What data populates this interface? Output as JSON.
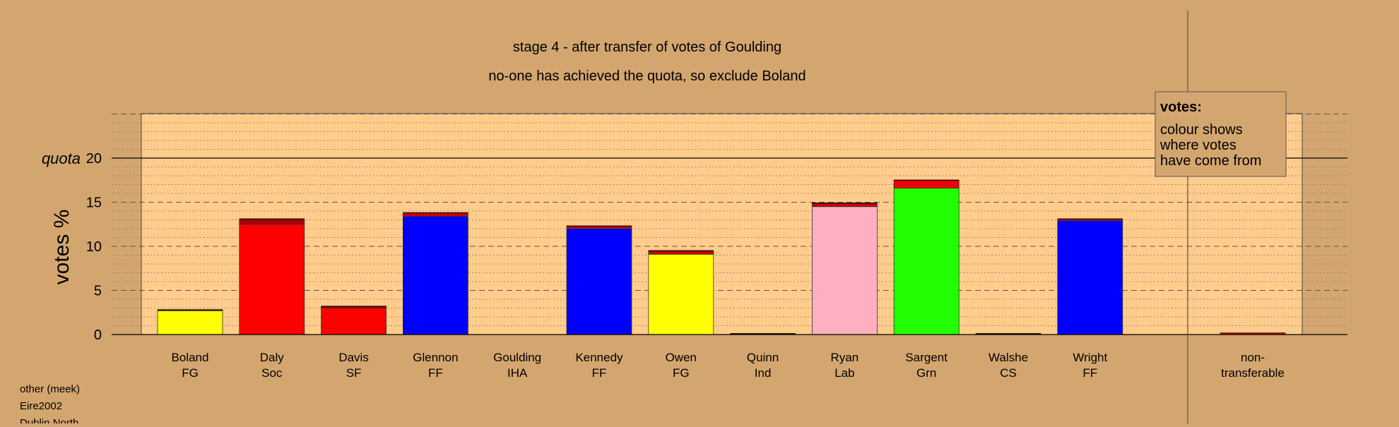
{
  "chart_data": {
    "type": "bar",
    "title": "stage 4 - after transfer of votes of Goulding",
    "subtitle": "no-one has achieved the quota, so exclude Boland",
    "ylabel": "votes %",
    "ylim": [
      0,
      25
    ],
    "yticks": [
      0,
      5,
      10,
      15,
      20
    ],
    "quota": {
      "label": "quota",
      "value": 20
    },
    "legend": {
      "title": "votes:",
      "lines": [
        "colour shows",
        "where votes",
        "have come from"
      ],
      "placement": "top-right"
    },
    "candidates": [
      {
        "name": "Boland",
        "party": "FG",
        "base": 2.7,
        "base_color": "#ffff00",
        "transfer": 0.1,
        "transfer_color": "#cc0000"
      },
      {
        "name": "Daly",
        "party": "Soc",
        "base": 12.5,
        "base_color": "#ff0000",
        "transfer": 0.6,
        "transfer_color": "#aa0000"
      },
      {
        "name": "Davis",
        "party": "SF",
        "base": 3.0,
        "base_color": "#ff0000",
        "transfer": 0.2,
        "transfer_color": "#aa0000"
      },
      {
        "name": "Glennon",
        "party": "FF",
        "base": 13.4,
        "base_color": "#0000ff",
        "transfer": 0.4,
        "transfer_color": "#cc0000"
      },
      {
        "name": "Goulding",
        "party": "IHA",
        "base": 0,
        "base_color": "#888888",
        "transfer": 0,
        "transfer_color": "#cc0000"
      },
      {
        "name": "Kennedy",
        "party": "FF",
        "base": 12.0,
        "base_color": "#0000ff",
        "transfer": 0.3,
        "transfer_color": "#cc0000"
      },
      {
        "name": "Owen",
        "party": "FG",
        "base": 9.1,
        "base_color": "#ffff00",
        "transfer": 0.4,
        "transfer_color": "#cc0000"
      },
      {
        "name": "Quinn",
        "party": "Ind",
        "base": 0.1,
        "base_color": "#888888",
        "transfer": 0,
        "transfer_color": "#cc0000"
      },
      {
        "name": "Ryan",
        "party": "Lab",
        "base": 14.5,
        "base_color": "#ffb0c0",
        "transfer": 0.4,
        "transfer_color": "#cc0000"
      },
      {
        "name": "Sargent",
        "party": "Grn",
        "base": 16.6,
        "base_color": "#22ff00",
        "transfer": 0.9,
        "transfer_color": "#ee0000"
      },
      {
        "name": "Walshe",
        "party": "CS",
        "base": 0.1,
        "base_color": "#888888",
        "transfer": 0,
        "transfer_color": "#cc0000"
      },
      {
        "name": "Wright",
        "party": "FF",
        "base": 12.9,
        "base_color": "#0000ff",
        "transfer": 0.2,
        "transfer_color": "#cc0000"
      }
    ],
    "nontransferable": {
      "line1": "non-",
      "line2": "transferable",
      "value": 0.2,
      "color": "#cc0000"
    }
  },
  "footer": [
    "other (meek)",
    "Eire2002",
    "Dublin North"
  ]
}
